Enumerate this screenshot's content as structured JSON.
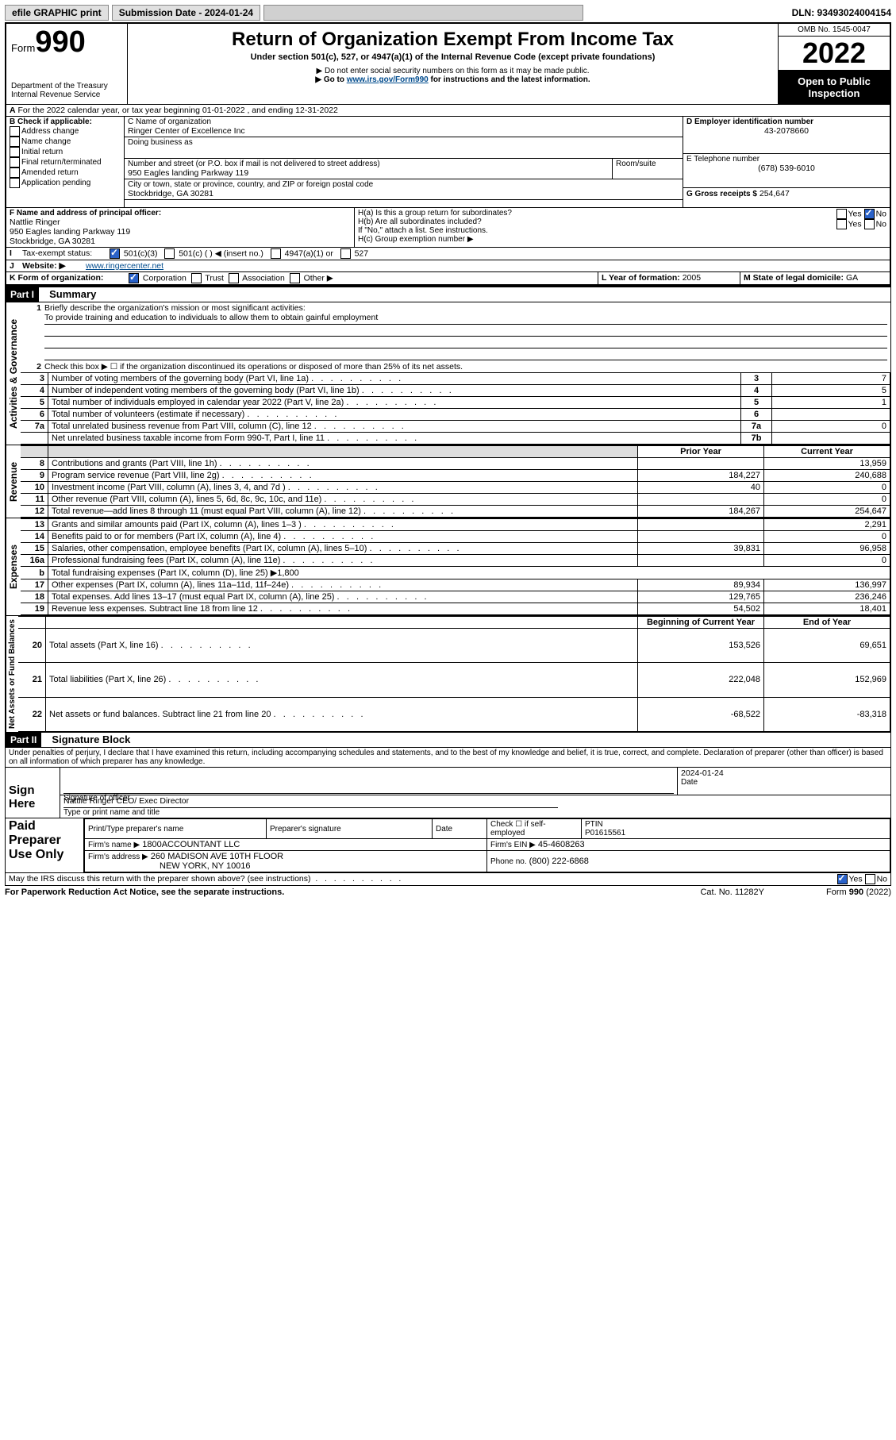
{
  "topbar": {
    "efile": "efile GRAPHIC print",
    "subdate_label": "Submission Date - 2024-01-24",
    "dln": "DLN: 93493024004154"
  },
  "header": {
    "form_prefix": "Form",
    "form_no": "990",
    "title": "Return of Organization Exempt From Income Tax",
    "subtitle": "Under section 501(c), 527, or 4947(a)(1) of the Internal Revenue Code (except private foundations)",
    "warn1": "▶ Do not enter social security numbers on this form as it may be made public.",
    "warn2": "▶ Go to ",
    "link": "www.irs.gov/Form990",
    "warn2b": " for instructions and the latest information.",
    "dept": "Department of the Treasury",
    "irs": "Internal Revenue Service",
    "omb": "OMB No. 1545-0047",
    "year": "2022",
    "opi": "Open to Public Inspection"
  },
  "a_line": {
    "text": "For the 2022 calendar year, or tax year beginning 01-01-2022   , and ending 12-31-2022"
  },
  "b": {
    "label": "B Check if applicable:",
    "opts": [
      "Address change",
      "Name change",
      "Initial return",
      "Final return/terminated",
      "Amended return",
      "Application pending"
    ]
  },
  "c": {
    "label": "C Name of organization",
    "name": "Ringer Center of Excellence Inc",
    "dba": "Doing business as",
    "street_label": "Number and street (or P.O. box if mail is not delivered to street address)",
    "room": "Room/suite",
    "street": "950 Eagles landing Parkway 119",
    "city_label": "City or town, state or province, country, and ZIP or foreign postal code",
    "city": "Stockbridge, GA  30281"
  },
  "d": {
    "label": "D Employer identification number",
    "value": "43-2078660"
  },
  "e": {
    "label": "E Telephone number",
    "value": "(678) 539-6010"
  },
  "g": {
    "label": "G Gross receipts $",
    "value": "254,647"
  },
  "f": {
    "label": "F  Name and address of principal officer:",
    "name": "Nattlie Ringer",
    "addr1": "950 Eagles landing Parkway 119",
    "addr2": "Stockbridge, GA  30281"
  },
  "h": {
    "a": "H(a)  Is this a group return for subordinates?",
    "b": "H(b)  Are all subordinates included?",
    "note": "If \"No,\" attach a list. See instructions.",
    "c": "H(c)  Group exemption number ▶",
    "yes": "Yes",
    "no": "No"
  },
  "i": {
    "label": "Tax-exempt status:",
    "o1": "501(c)(3)",
    "o2": "501(c) (   ) ◀ (insert no.)",
    "o3": "4947(a)(1) or",
    "o4": "527"
  },
  "j": {
    "label": "Website: ▶",
    "value": "www.ringercenter.net"
  },
  "k": {
    "label": "K Form of organization:",
    "o1": "Corporation",
    "o2": "Trust",
    "o3": "Association",
    "o4": "Other ▶"
  },
  "l": {
    "label": "L Year of formation:",
    "value": "2005"
  },
  "m": {
    "label": "M State of legal domicile:",
    "value": "GA"
  },
  "part1": {
    "label": "Part I",
    "title": "Summary",
    "line1": "Briefly describe the organization's mission or most significant activities:",
    "mission": "To provide training and education to individuals to allow them to obtain gainful employment",
    "line2": "Check this box ▶ ☐  if the organization discontinued its operations or disposed of more than 25% of its net assets.",
    "section_activities": "Activities & Governance",
    "section_revenue": "Revenue",
    "section_expenses": "Expenses",
    "section_net": "Net Assets or Fund Balances",
    "rows_act": [
      {
        "n": "3",
        "t": "Number of voting members of the governing body (Part VI, line 1a)",
        "box": "3",
        "v": "7"
      },
      {
        "n": "4",
        "t": "Number of independent voting members of the governing body (Part VI, line 1b)",
        "box": "4",
        "v": "5"
      },
      {
        "n": "5",
        "t": "Total number of individuals employed in calendar year 2022 (Part V, line 2a)",
        "box": "5",
        "v": "1"
      },
      {
        "n": "6",
        "t": "Total number of volunteers (estimate if necessary)",
        "box": "6",
        "v": ""
      },
      {
        "n": "7a",
        "t": "Total unrelated business revenue from Part VIII, column (C), line 12",
        "box": "7a",
        "v": "0"
      },
      {
        "n": "",
        "t": "Net unrelated business taxable income from Form 990-T, Part I, line 11",
        "box": "7b",
        "v": ""
      }
    ],
    "col_prior": "Prior Year",
    "col_current": "Current Year",
    "rows_rev": [
      {
        "n": "8",
        "t": "Contributions and grants (Part VIII, line 1h)",
        "p": "",
        "c": "13,959"
      },
      {
        "n": "9",
        "t": "Program service revenue (Part VIII, line 2g)",
        "p": "184,227",
        "c": "240,688"
      },
      {
        "n": "10",
        "t": "Investment income (Part VIII, column (A), lines 3, 4, and 7d )",
        "p": "40",
        "c": "0"
      },
      {
        "n": "11",
        "t": "Other revenue (Part VIII, column (A), lines 5, 6d, 8c, 9c, 10c, and 11e)",
        "p": "",
        "c": "0"
      },
      {
        "n": "12",
        "t": "Total revenue—add lines 8 through 11 (must equal Part VIII, column (A), line 12)",
        "p": "184,267",
        "c": "254,647"
      }
    ],
    "rows_exp": [
      {
        "n": "13",
        "t": "Grants and similar amounts paid (Part IX, column (A), lines 1–3 )",
        "p": "",
        "c": "2,291"
      },
      {
        "n": "14",
        "t": "Benefits paid to or for members (Part IX, column (A), line 4)",
        "p": "",
        "c": "0"
      },
      {
        "n": "15",
        "t": "Salaries, other compensation, employee benefits (Part IX, column (A), lines 5–10)",
        "p": "39,831",
        "c": "96,958"
      },
      {
        "n": "16a",
        "t": "Professional fundraising fees (Part IX, column (A), line 11e)",
        "p": "",
        "c": "0"
      },
      {
        "n": "b",
        "t": "Total fundraising expenses (Part IX, column (D), line 25) ▶1,800",
        "noval": true
      },
      {
        "n": "17",
        "t": "Other expenses (Part IX, column (A), lines 11a–11d, 11f–24e)",
        "p": "89,934",
        "c": "136,997"
      },
      {
        "n": "18",
        "t": "Total expenses. Add lines 13–17 (must equal Part IX, column (A), line 25)",
        "p": "129,765",
        "c": "236,246"
      },
      {
        "n": "19",
        "t": "Revenue less expenses. Subtract line 18 from line 12",
        "p": "54,502",
        "c": "18,401"
      }
    ],
    "col_beg": "Beginning of Current Year",
    "col_end": "End of Year",
    "rows_net": [
      {
        "n": "20",
        "t": "Total assets (Part X, line 16)",
        "p": "153,526",
        "c": "69,651"
      },
      {
        "n": "21",
        "t": "Total liabilities (Part X, line 26)",
        "p": "222,048",
        "c": "152,969"
      },
      {
        "n": "22",
        "t": "Net assets or fund balances. Subtract line 21 from line 20",
        "p": "-68,522",
        "c": "-83,318"
      }
    ]
  },
  "part2": {
    "label": "Part II",
    "title": "Signature Block",
    "penalties": "Under penalties of perjury, I declare that I have examined this return, including accompanying schedules and statements, and to the best of my knowledge and belief, it is true, correct, and complete. Declaration of preparer (other than officer) is based on all information of which preparer has any knowledge.",
    "sign_here": "Sign Here",
    "sig_officer": "Signature of officer",
    "date": "Date",
    "sig_date": "2024-01-24",
    "typed": "Nattlie Ringer  CEO/ Exec Director",
    "typed_label": "Type or print name and title",
    "paid": "Paid Preparer Use Only",
    "pt_name": "Print/Type preparer's name",
    "pt_sig": "Preparer's signature",
    "pt_date": "Date",
    "check_self": "Check ☐ if self-employed",
    "ptin_label": "PTIN",
    "ptin": "P01615561",
    "firm_name_label": "Firm's name   ▶",
    "firm_name": "1800ACCOUNTANT LLC",
    "firm_ein_label": "Firm's EIN ▶",
    "firm_ein": "45-4608263",
    "firm_addr_label": "Firm's address ▶",
    "firm_addr": "260 MADISON AVE 10TH FLOOR",
    "firm_city": "NEW YORK, NY  10016",
    "phone_label": "Phone no.",
    "phone": "(800) 222-6868",
    "may_irs": "May the IRS discuss this return with the preparer shown above? (see instructions)"
  },
  "footer": {
    "pra": "For Paperwork Reduction Act Notice, see the separate instructions.",
    "cat": "Cat. No. 11282Y",
    "form": "Form 990 (2022)"
  }
}
